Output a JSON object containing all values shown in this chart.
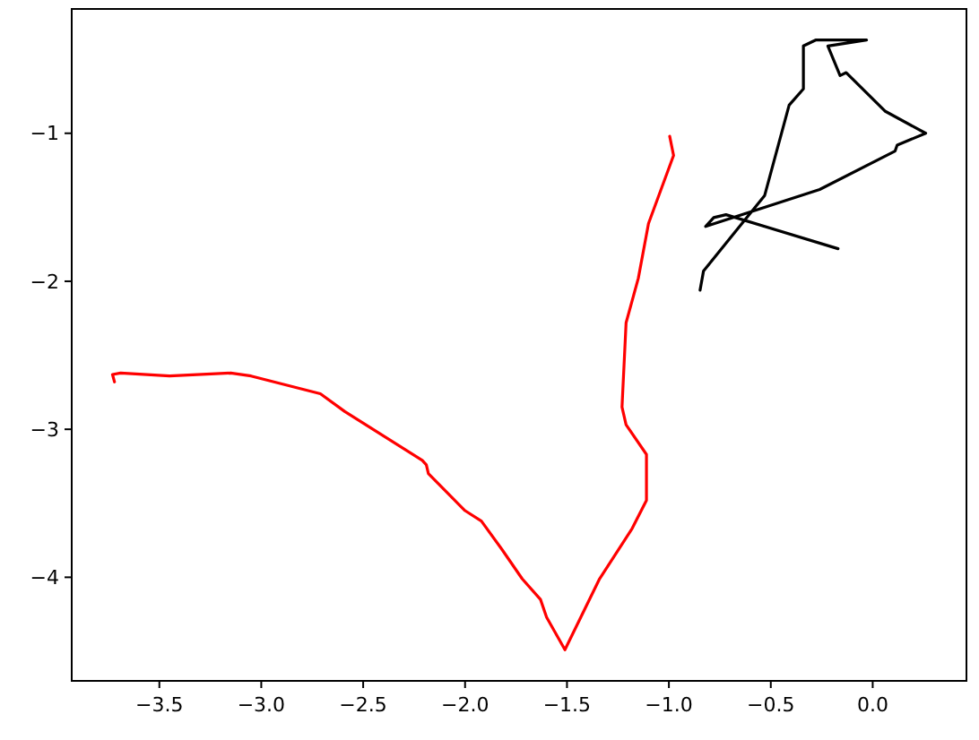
{
  "chart_data": {
    "type": "line",
    "xlim": [
      -3.93,
      0.46
    ],
    "ylim": [
      -4.7,
      -0.16
    ],
    "xticks": [
      {
        "value": -3.5,
        "label": "−3.5"
      },
      {
        "value": -3.0,
        "label": "−3.0"
      },
      {
        "value": -2.5,
        "label": "−2.5"
      },
      {
        "value": -2.0,
        "label": "−2.0"
      },
      {
        "value": -1.5,
        "label": "−1.5"
      },
      {
        "value": -1.0,
        "label": "−1.0"
      },
      {
        "value": -0.5,
        "label": "−0.5"
      },
      {
        "value": 0,
        "label": "0.0"
      }
    ],
    "yticks": [
      {
        "value": -1,
        "label": "−1"
      },
      {
        "value": -2,
        "label": "−2"
      },
      {
        "value": -3,
        "label": "−3"
      },
      {
        "value": -4,
        "label": "−4"
      }
    ],
    "series": [
      {
        "color": "#ff0000",
        "x": [
          -0.996,
          -0.977,
          -1.1,
          -1.15,
          -1.21,
          -1.23,
          -1.21,
          -1.11,
          -1.11,
          -1.18,
          -1.34,
          -1.51,
          -1.6,
          -1.63,
          -1.72,
          -1.82,
          -1.92,
          -2.0,
          -2.18,
          -2.19,
          -2.21,
          -2.59,
          -2.71,
          -3.05,
          -3.15,
          -3.45,
          -3.69,
          -3.73,
          -3.72
        ],
        "values": [
          -1.02,
          -1.15,
          -1.61,
          -1.98,
          -2.28,
          -2.85,
          -2.97,
          -3.17,
          -3.48,
          -3.67,
          -4.01,
          -4.49,
          -4.27,
          -4.15,
          -4.01,
          -3.81,
          -3.62,
          -3.55,
          -3.3,
          -3.24,
          -3.21,
          -2.88,
          -2.76,
          -2.64,
          -2.62,
          -2.64,
          -2.62,
          -2.63,
          -2.68
        ]
      },
      {
        "color": "#000000",
        "x": [
          -0.847,
          -0.83,
          -0.53,
          -0.41,
          -0.34,
          -0.34,
          -0.28,
          -0.03,
          -0.22,
          -0.16,
          -0.13,
          0.06,
          0.26,
          0.12,
          0.11,
          -0.26,
          -0.82,
          -0.78,
          -0.72,
          -0.17
        ],
        "values": [
          -2.06,
          -1.93,
          -1.42,
          -0.81,
          -0.7,
          -0.41,
          -0.37,
          -0.37,
          -0.41,
          -0.61,
          -0.59,
          -0.85,
          -1.0,
          -1.08,
          -1.12,
          -1.38,
          -1.63,
          -1.57,
          -1.55,
          -1.78
        ]
      }
    ]
  }
}
